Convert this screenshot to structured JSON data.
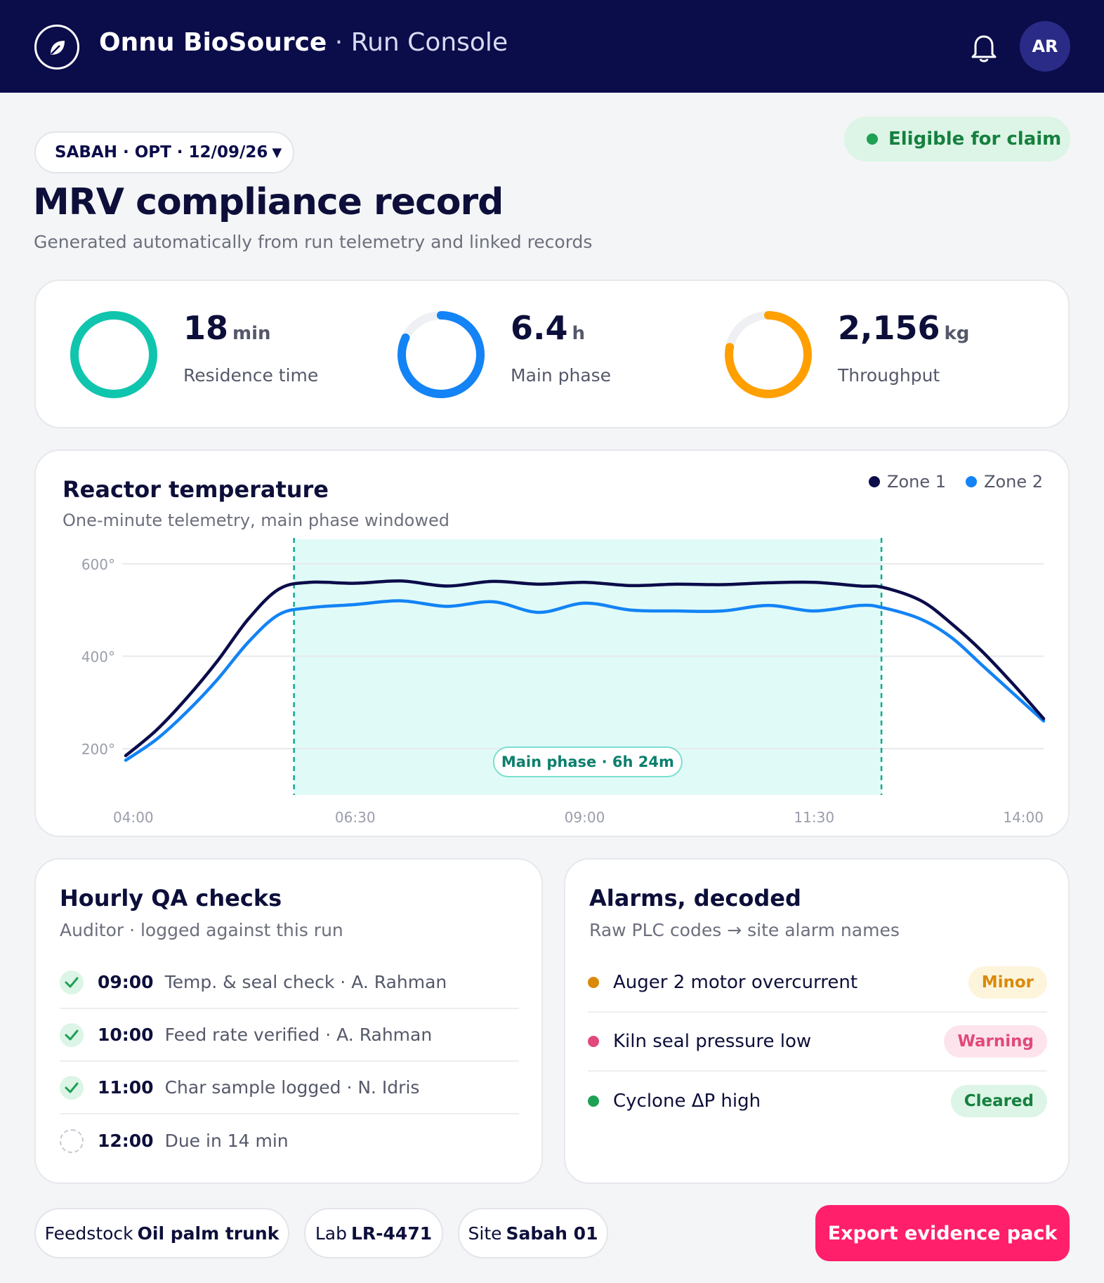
{
  "header": {
    "brand": "Onnu BioSource",
    "separator": "·",
    "app": "Run Console",
    "avatar_initials": "AR"
  },
  "run_selector": {
    "label": "SABAH · OPT · 12/09/26"
  },
  "status": {
    "label": "Eligible for claim",
    "color": "#1ea055"
  },
  "page": {
    "title": "MRV compliance record",
    "subtitle": "Generated automatically from run telemetry and linked records"
  },
  "kpis": [
    {
      "value": "18",
      "unit": "min",
      "label": "Residence time",
      "fill": 1.0,
      "color": "#10c5ad"
    },
    {
      "value": "6.4",
      "unit": "h",
      "label": "Main phase",
      "fill": 0.82,
      "color": "#1383f5"
    },
    {
      "value": "2,156",
      "unit": "kg",
      "label": "Throughput",
      "fill": 0.78,
      "color": "#ff9f00"
    }
  ],
  "chart": {
    "title": "Reactor temperature",
    "subtitle": "One-minute telemetry, main phase windowed",
    "legend": [
      "Zone 1",
      "Zone 2"
    ],
    "band_label": "Main phase · 6h 24m"
  },
  "chart_data": {
    "type": "line",
    "x_tick_labels": [
      "04:00",
      "06:30",
      "09:00",
      "11:30",
      "14:00"
    ],
    "y_tick_labels": [
      "600°",
      "400°",
      "200°"
    ],
    "ylim": [
      100,
      650
    ],
    "xlim": [
      "04:00",
      "14:00"
    ],
    "grid": true,
    "legend_position": "top-right",
    "highlight_window": {
      "start": "05:50",
      "end": "12:14",
      "label": "Main phase · 6h 24m"
    },
    "x": [
      "04:00",
      "04:20",
      "04:40",
      "05:00",
      "05:20",
      "05:40",
      "06:00",
      "06:30",
      "07:00",
      "07:30",
      "08:00",
      "08:30",
      "09:00",
      "09:30",
      "10:00",
      "10:30",
      "11:00",
      "11:30",
      "12:00",
      "12:15",
      "12:40",
      "13:00",
      "13:20",
      "13:40",
      "14:00"
    ],
    "series": [
      {
        "name": "Zone 1",
        "color": "#0b0c4a",
        "values": [
          185,
          240,
          310,
          390,
          480,
          545,
          560,
          558,
          563,
          552,
          562,
          556,
          560,
          553,
          556,
          555,
          559,
          560,
          552,
          549,
          520,
          470,
          410,
          340,
          265
        ]
      },
      {
        "name": "Zone 2",
        "color": "#1383f5",
        "values": [
          175,
          220,
          280,
          350,
          430,
          490,
          505,
          512,
          520,
          508,
          518,
          495,
          515,
          500,
          498,
          498,
          510,
          498,
          510,
          505,
          480,
          440,
          380,
          320,
          260
        ]
      }
    ]
  },
  "qa": {
    "title": "Hourly QA checks",
    "subtitle": "Auditor · logged against this run",
    "items": [
      {
        "time": "09:00",
        "desc": "Temp. & seal check · A. Rahman",
        "done": true
      },
      {
        "time": "10:00",
        "desc": "Feed rate verified · A. Rahman",
        "done": true
      },
      {
        "time": "11:00",
        "desc": "Char sample logged · N. Idris",
        "done": true
      },
      {
        "time": "12:00",
        "desc": "Due in 14 min",
        "done": false
      }
    ]
  },
  "alarms": {
    "title": "Alarms, decoded",
    "subtitle": "Raw PLC codes → site alarm names",
    "items": [
      {
        "name": "Auger 2 motor overcurrent",
        "badge": "Minor",
        "dot": "#d98a0a",
        "badge_bg": "#fdf4dc",
        "badge_fg": "#d98a0a"
      },
      {
        "name": "Kiln seal pressure low",
        "badge": "Warning",
        "dot": "#e0497a",
        "badge_bg": "#fde4ec",
        "badge_fg": "#e0497a"
      },
      {
        "name": "Cyclone ΔP high",
        "badge": "Cleared",
        "dot": "#1ea055",
        "badge_bg": "#dcf5e6",
        "badge_fg": "#16803f"
      }
    ]
  },
  "footer": {
    "chips": [
      {
        "key": "Feedstock",
        "value": "Oil palm trunk"
      },
      {
        "key": "Lab",
        "value": "LR-4471"
      },
      {
        "key": "Site",
        "value": "Sabah 01"
      }
    ],
    "export_label": "Export evidence pack"
  }
}
